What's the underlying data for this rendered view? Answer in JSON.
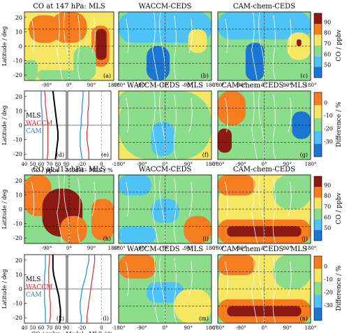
{
  "colors": {
    "co": [
      "#1a237e",
      "#1976d2",
      "#4fc3f7",
      "#8bdc8b",
      "#f5e663",
      "#f57c1f",
      "#8b1a12"
    ],
    "diff": [
      "#1a237e",
      "#1976d2",
      "#4fc3f7",
      "#8bdc8b",
      "#f5e663",
      "#f57c1f",
      "#8b1a12"
    ],
    "line_mls": "#000000",
    "line_waccm": "#d32f2f",
    "line_cam": "#1e88e5"
  },
  "colorbars": [
    {
      "label": "CO / ppbv",
      "ticks": [
        "90",
        "80",
        "70",
        "60",
        "50"
      ]
    },
    {
      "label": "Difference / %",
      "ticks": [
        "0",
        "-10",
        "-20",
        "-30"
      ]
    },
    {
      "label": "CO / ppbv",
      "ticks": [
        "90",
        "80",
        "70",
        "60",
        "50"
      ]
    },
    {
      "label": "Difference / %",
      "ticks": [
        "0",
        "-10",
        "-20",
        "-30"
      ]
    }
  ],
  "axes": {
    "lat_label": "Latitude / deg",
    "lat_ticks": [
      "20",
      "10",
      "0",
      "-10",
      "-20"
    ],
    "lon_ticks": [
      "-180°",
      "-90°",
      "0°",
      "90°",
      "180°"
    ],
    "lon_ticks_short": [
      "-90°",
      "0°",
      "90°",
      "180°"
    ],
    "co_xlabel": "CO / ppbv",
    "co_xticks": [
      "40",
      "50",
      "60",
      "70",
      "80",
      "90"
    ],
    "diff_xlabel": "Model - MLS / %",
    "diff_xticks": [
      "-20",
      "0"
    ]
  },
  "rows": [
    {
      "titles": [
        "CO at 147 hPa: MLS",
        "WACCM-CEDS",
        "CAM-chem-CEDS"
      ],
      "panels": [
        "(a)",
        "(b)",
        "(c)"
      ],
      "kind": "co"
    },
    {
      "titles": [
        "",
        "WACCM-CEDS - MLS",
        "CAM-chem-CEDS - MLS"
      ],
      "panels": [
        "(d)",
        "(e)",
        "(f)",
        "(g)"
      ],
      "legend": [
        "MLS",
        "WACCM",
        "CAM"
      ],
      "kind": "diff"
    },
    {
      "titles": [
        "CO at 215 hPa: MLS",
        "WACCM-CEDS",
        "CAM-chem-CEDS"
      ],
      "panels": [
        "(h)",
        "(i)",
        "(j)"
      ],
      "kind": "co"
    },
    {
      "titles": [
        "",
        "WACCM-CEDS - MLS",
        "CAM-chem-CEDS - MLS"
      ],
      "panels": [
        "(k)",
        "(l)",
        "(m)",
        "(n)"
      ],
      "legend": [
        "MLS",
        "WACCM",
        "CAM"
      ],
      "kind": "diff"
    }
  ],
  "chart_data": [
    {
      "type": "line",
      "panel": "(d)",
      "xlabel": "CO / ppbv",
      "ylabel": "Latitude / deg",
      "xlim": [
        40,
        90
      ],
      "ylim": [
        -25,
        25
      ],
      "y": [
        -25,
        -20,
        -15,
        -10,
        -5,
        0,
        5,
        10,
        15,
        20,
        25
      ],
      "series": [
        {
          "name": "MLS",
          "values": [
            77,
            78,
            79,
            80,
            80,
            79,
            78,
            77,
            76,
            75,
            74
          ]
        },
        {
          "name": "WACCM",
          "values": [
            67,
            68,
            68,
            68,
            68,
            68,
            67,
            66,
            65,
            65,
            64
          ]
        },
        {
          "name": "CAM",
          "values": [
            62,
            62,
            62,
            62,
            62,
            62,
            61,
            61,
            60,
            60,
            60
          ]
        }
      ]
    },
    {
      "type": "line",
      "panel": "(e)",
      "xlabel": "Model - MLS / %",
      "ylabel": "Latitude / deg",
      "xlim": [
        -35,
        10
      ],
      "ylim": [
        -25,
        25
      ],
      "y": [
        -25,
        -20,
        -15,
        -10,
        -5,
        0,
        5,
        10,
        15,
        20,
        25
      ],
      "series": [
        {
          "name": "WACCM",
          "values": [
            -13,
            -13,
            -14,
            -15,
            -15,
            -14,
            -14,
            -14,
            -13,
            -13,
            -13
          ]
        },
        {
          "name": "CAM",
          "values": [
            -20,
            -21,
            -22,
            -22,
            -22,
            -21,
            -21,
            -20,
            -20,
            -19,
            -19
          ]
        }
      ]
    },
    {
      "type": "line",
      "panel": "(k)",
      "xlabel": "CO / ppbv",
      "ylabel": "Latitude / deg",
      "xlim": [
        40,
        90
      ],
      "ylim": [
        -25,
        25
      ],
      "y": [
        -25,
        -20,
        -15,
        -10,
        -5,
        0,
        5,
        10,
        15,
        20,
        25
      ],
      "series": [
        {
          "name": "MLS",
          "values": [
            82,
            83,
            83,
            82,
            81,
            79,
            77,
            75,
            74,
            74,
            74
          ]
        },
        {
          "name": "WACCM",
          "values": [
            70,
            71,
            71,
            71,
            70,
            70,
            69,
            69,
            69,
            70,
            70
          ]
        },
        {
          "name": "CAM",
          "values": [
            65,
            65,
            65,
            64,
            64,
            64,
            64,
            64,
            65,
            65,
            65
          ]
        }
      ]
    },
    {
      "type": "line",
      "panel": "(l)",
      "xlabel": "Model - MLS / %",
      "ylabel": "Latitude / deg",
      "xlim": [
        -35,
        10
      ],
      "ylim": [
        -25,
        25
      ],
      "y": [
        -25,
        -20,
        -15,
        -10,
        -5,
        0,
        5,
        10,
        15,
        20,
        25
      ],
      "series": [
        {
          "name": "WACCM",
          "values": [
            -15,
            -15,
            -14,
            -13,
            -12,
            -11,
            -10,
            -9,
            -8,
            -7,
            -7
          ]
        },
        {
          "name": "CAM",
          "values": [
            -21,
            -21,
            -22,
            -22,
            -21,
            -20,
            -18,
            -16,
            -15,
            -13,
            -13
          ]
        }
      ]
    }
  ]
}
